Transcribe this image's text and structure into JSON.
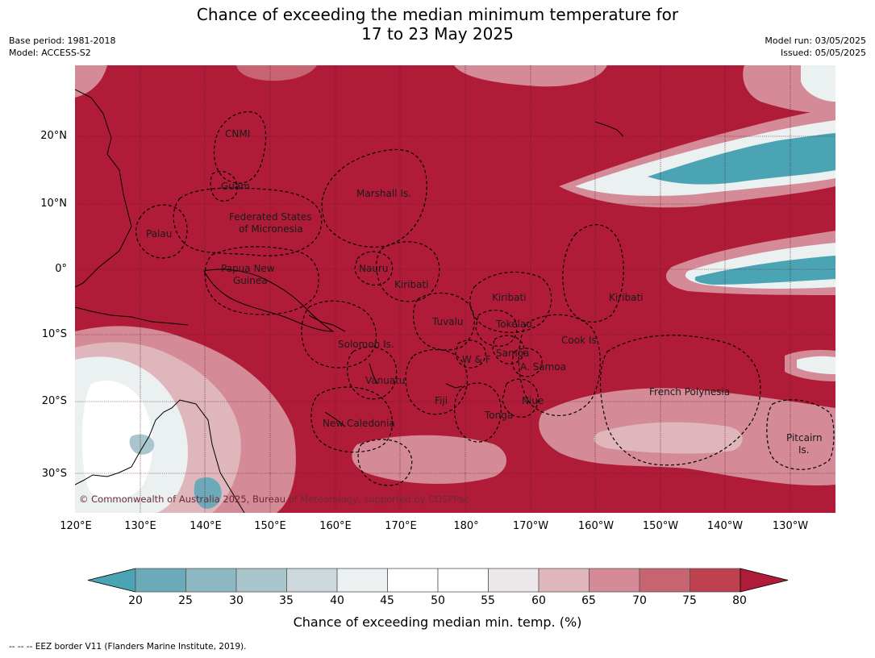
{
  "title": {
    "line1": "Chance of exceeding the median minimum temperature for",
    "line2": "17 to 23 May 2025"
  },
  "meta": {
    "base_period": "Base period: 1981-2018",
    "model": "Model: ACCESS-S2",
    "model_run": "Model run: 03/05/2025",
    "issued": "Issued: 05/05/2025"
  },
  "axes": {
    "lat_labels": [
      "20°N",
      "10°N",
      "0°",
      "10°S",
      "20°S",
      "30°S"
    ],
    "lon_labels": [
      "120°E",
      "130°E",
      "140°E",
      "150°E",
      "160°E",
      "170°E",
      "180°",
      "170°W",
      "160°W",
      "150°W",
      "140°W",
      "130°W"
    ]
  },
  "places": [
    "CNMI",
    "Guam",
    "Marshall Is.",
    "Federated States",
    "of Micronesia",
    "Palau",
    "Papua New",
    "Guinea",
    "Nauru",
    "Kiribati",
    "Kiribati",
    "Kiribati",
    "Tuvalu",
    "Tokelau",
    "Solomon Is.",
    "Cook Is.",
    "Samoa",
    "W & F",
    "A. Samoa",
    "Vanuatu",
    "Fiji",
    "Niue",
    "French Polynesia",
    "Tonga",
    "New Caledonia",
    "Pitcairn",
    "Is."
  ],
  "copyright": "© Commonwealth of Australia 2025, Bureau of Meteorology, supported by COSPPac",
  "colorbar": {
    "ticks": [
      "20",
      "25",
      "30",
      "35",
      "40",
      "45",
      "50",
      "55",
      "60",
      "65",
      "70",
      "75",
      "80"
    ],
    "colors": [
      "#4aa4b4",
      "#6ca9b9",
      "#8cb8c3",
      "#a9c6cc",
      "#cdd9dc",
      "#ebf0f1",
      "#ffffff",
      "#ffffff",
      "#ece8ea",
      "#e0b6bd",
      "#d48a97",
      "#c86472",
      "#be4150",
      "#b01c38"
    ],
    "label": "Chance of exceeding median min. temp. (%)"
  },
  "footnote": "--  --  -- EEZ border V11 (Flanders Marine Institute, 2019)."
}
